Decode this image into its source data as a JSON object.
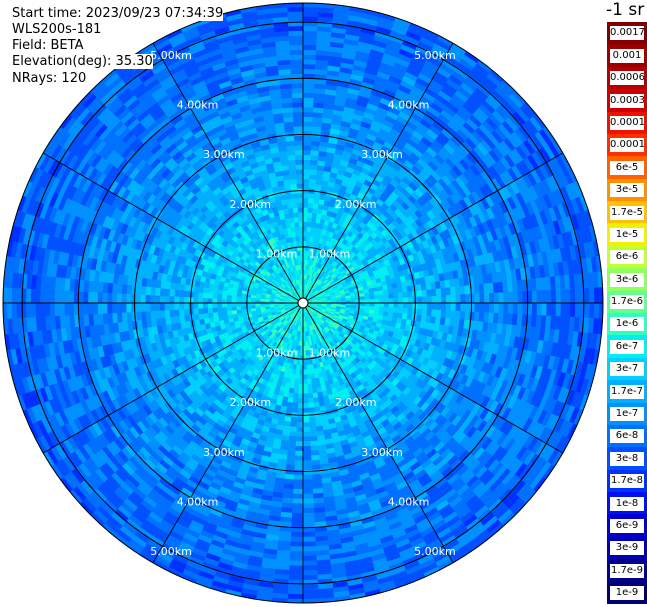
{
  "info": {
    "start_time": "Start time: 2023/09/23 07:34:39",
    "instrument": "WLS200s-181",
    "field": "Field: BETA",
    "elevation": "Elevation(deg): 35.30",
    "nrays": "NRays: 120"
  },
  "colorbar": {
    "unit_label": "-1 sr",
    "segments": [
      {
        "label": "0.0017",
        "color": "#7f0000"
      },
      {
        "label": "0.001",
        "color": "#9a0000"
      },
      {
        "label": "0.0006",
        "color": "#b40000"
      },
      {
        "label": "0.0003",
        "color": "#d00000"
      },
      {
        "label": "0.00017",
        "color": "#ee1000"
      },
      {
        "label": "0.0001",
        "color": "#ff3000"
      },
      {
        "label": "6e-5",
        "color": "#ff6000"
      },
      {
        "label": "3e-5",
        "color": "#ff9000"
      },
      {
        "label": "1.7e-5",
        "color": "#ffc000"
      },
      {
        "label": "1e-5",
        "color": "#f0f000"
      },
      {
        "label": "6e-6",
        "color": "#c0ff30"
      },
      {
        "label": "3e-6",
        "color": "#90ff60"
      },
      {
        "label": "1.7e-6",
        "color": "#60ff90"
      },
      {
        "label": "1e-6",
        "color": "#30ffc0"
      },
      {
        "label": "6e-7",
        "color": "#00f0f0"
      },
      {
        "label": "3e-7",
        "color": "#00d0ff"
      },
      {
        "label": "1.7e-7",
        "color": "#00b0ff"
      },
      {
        "label": "1e-7",
        "color": "#0090ff"
      },
      {
        "label": "6e-8",
        "color": "#0070ff"
      },
      {
        "label": "3e-8",
        "color": "#0050ff"
      },
      {
        "label": "1.7e-8",
        "color": "#0030ff"
      },
      {
        "label": "1e-8",
        "color": "#0010f0"
      },
      {
        "label": "6e-9",
        "color": "#0000d0"
      },
      {
        "label": "3e-9",
        "color": "#0000b0"
      },
      {
        "label": "1.7e-9",
        "color": "#000090"
      },
      {
        "label": "1e-9",
        "color": "#000070"
      }
    ]
  },
  "chart_data": {
    "type": "heatmap",
    "projection": "polar (PPI scan)",
    "field": "BETA",
    "elevation_deg": 35.3,
    "n_rays": 120,
    "azimuth_spokes_deg": [
      0,
      30,
      60,
      90,
      120,
      150,
      180,
      210,
      240,
      270,
      300,
      330
    ],
    "range_rings": [
      {
        "label": "1.00km",
        "value": 1.0
      },
      {
        "label": "2.00km",
        "value": 2.0
      },
      {
        "label": "3.00km",
        "value": 3.0
      },
      {
        "label": "4.00km",
        "value": 4.0
      },
      {
        "label": "5.00km",
        "value": 5.0
      }
    ],
    "color_scale": "log",
    "value_range": [
      1e-09,
      0.0017
    ],
    "radial_profile_approx": [
      {
        "range_km": 0.3,
        "beta": 6e-07
      },
      {
        "range_km": 1.0,
        "beta": 4e-07
      },
      {
        "range_km": 2.0,
        "beta": 2.5e-07
      },
      {
        "range_km": 3.0,
        "beta": 1.3e-07
      },
      {
        "range_km": 4.0,
        "beta": 8e-08
      },
      {
        "range_km": 5.0,
        "beta": 6e-08
      },
      {
        "range_km": 5.6,
        "beta": 5e-08
      }
    ],
    "grid": true
  }
}
